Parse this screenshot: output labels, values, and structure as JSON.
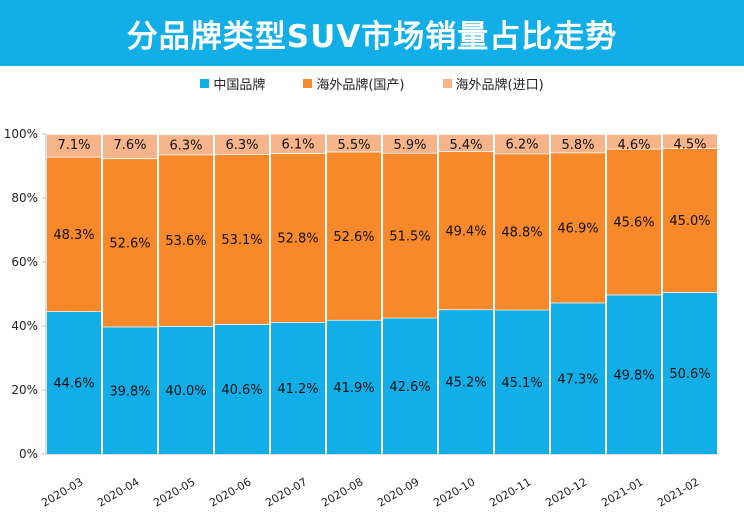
{
  "title": "分品牌类型SUV市场销量占比走势",
  "colors": {
    "banner": "#11aee8",
    "domestic": "#11aee8",
    "foreign_local": "#f7892b",
    "foreign_import": "#f6b48a"
  },
  "chart_data": {
    "type": "bar",
    "stacked": true,
    "categories": [
      "2020-03",
      "2020-04",
      "2020-05",
      "2020-06",
      "2020-07",
      "2020-08",
      "2020-09",
      "2020-10",
      "2020-11",
      "2020-12",
      "2021-01",
      "2021-02"
    ],
    "series": [
      {
        "name": "中国品牌",
        "color": "#11aee8",
        "values": [
          44.6,
          39.8,
          40.0,
          40.6,
          41.2,
          41.9,
          42.6,
          45.2,
          45.1,
          47.3,
          49.8,
          50.6
        ],
        "labels": [
          "44.6%",
          "39.8%",
          "40.0%",
          "40.6%",
          "41.2%",
          "41.9%",
          "42.6%",
          "45.2%",
          "45.1%",
          "47.3%",
          "49.8%",
          "50.6%"
        ]
      },
      {
        "name": "海外品牌(国产)",
        "color": "#f7892b",
        "values": [
          48.3,
          52.6,
          53.6,
          53.1,
          52.8,
          52.6,
          51.5,
          49.4,
          48.8,
          46.9,
          45.6,
          45.0
        ],
        "labels": [
          "48.3%",
          "52.6%",
          "53.6%",
          "53.1%",
          "52.8%",
          "52.6%",
          "51.5%",
          "49.4%",
          "48.8%",
          "46.9%",
          "45.6%",
          "45.0%"
        ]
      },
      {
        "name": "海外品牌(进口)",
        "color": "#f6b48a",
        "values": [
          7.1,
          7.6,
          6.3,
          6.3,
          6.1,
          5.5,
          5.9,
          5.4,
          6.2,
          5.8,
          4.6,
          4.5
        ],
        "labels": [
          "7.1%",
          "7.6%",
          "6.3%",
          "6.3%",
          "6.1%",
          "5.5%",
          "5.9%",
          "5.4%",
          "6.2%",
          "5.8%",
          "4.6%",
          "4.5%"
        ]
      }
    ],
    "yticks": [
      "0%",
      "20%",
      "40%",
      "60%",
      "80%",
      "100%"
    ],
    "ylim": [
      0,
      100
    ],
    "legend": "top-center",
    "grid": false
  }
}
